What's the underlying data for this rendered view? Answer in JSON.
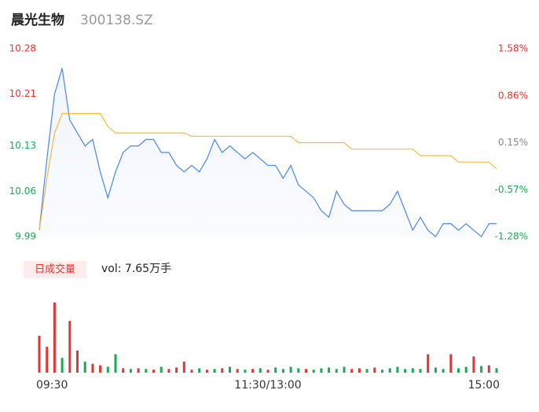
{
  "header": {
    "name": "晨光生物",
    "code": "300138.SZ"
  },
  "chart_data": [
    {
      "type": "line",
      "x": [
        0,
        4,
        8,
        12,
        16,
        20,
        24,
        28,
        32,
        36,
        40,
        44,
        48,
        52,
        56,
        60,
        64,
        68,
        72,
        76,
        80,
        84,
        88,
        92,
        96,
        100,
        104,
        108,
        112,
        116,
        120,
        124,
        128,
        132,
        136,
        140,
        144,
        148,
        152,
        156,
        160,
        164,
        168,
        172,
        176,
        180,
        184,
        188,
        192,
        196,
        200,
        204,
        208,
        212,
        216,
        220,
        224,
        228,
        232,
        236,
        240
      ],
      "xlim": [
        0,
        240
      ],
      "xticks": [
        {
          "value": 0,
          "label": "09:30"
        },
        {
          "value": 120,
          "label": "11:30/13:00"
        },
        {
          "value": 240,
          "label": "15:00"
        }
      ],
      "ylim": [
        9.99,
        10.28
      ],
      "yticks": [
        10.28,
        10.21,
        10.13,
        10.06,
        9.99
      ],
      "y2lim": [
        -1.28,
        1.58
      ],
      "y2ticks": [
        {
          "value": 1.58,
          "label": "1.58%"
        },
        {
          "value": 0.86,
          "label": "0.86%"
        },
        {
          "value": 0.15,
          "label": "0.15%"
        },
        {
          "value": -0.57,
          "label": "-0.57%"
        },
        {
          "value": -1.28,
          "label": "-1.28%"
        }
      ],
      "series": [
        {
          "color": "#4a86e8",
          "values": [
            10.0,
            10.11,
            10.21,
            10.25,
            10.17,
            10.15,
            10.13,
            10.14,
            10.09,
            10.05,
            10.09,
            10.12,
            10.13,
            10.13,
            10.14,
            10.14,
            10.12,
            10.12,
            10.1,
            10.09,
            10.1,
            10.09,
            10.11,
            10.14,
            10.12,
            10.13,
            10.12,
            10.11,
            10.12,
            10.11,
            10.1,
            10.1,
            10.08,
            10.1,
            10.07,
            10.06,
            10.05,
            10.03,
            10.02,
            10.06,
            10.04,
            10.03,
            10.03,
            10.03,
            10.03,
            10.03,
            10.04,
            10.06,
            10.03,
            10.0,
            10.02,
            10.0,
            9.99,
            10.01,
            10.01,
            10.0,
            10.01,
            10.0,
            9.99,
            10.01,
            10.01
          ]
        },
        {
          "color": "#f5b942",
          "values": [
            10.0,
            10.08,
            10.15,
            10.18,
            10.18,
            10.18,
            10.18,
            10.18,
            10.18,
            10.16,
            10.15,
            10.15,
            10.15,
            10.15,
            10.15,
            10.15,
            10.15,
            10.15,
            10.15,
            10.15,
            10.145,
            10.145,
            10.145,
            10.145,
            10.145,
            10.145,
            10.145,
            10.145,
            10.145,
            10.145,
            10.145,
            10.145,
            10.145,
            10.145,
            10.135,
            10.135,
            10.135,
            10.135,
            10.135,
            10.135,
            10.135,
            10.125,
            10.125,
            10.125,
            10.125,
            10.125,
            10.125,
            10.125,
            10.125,
            10.125,
            10.115,
            10.115,
            10.115,
            10.115,
            10.115,
            10.105,
            10.105,
            10.105,
            10.105,
            10.105,
            10.095
          ]
        }
      ]
    },
    {
      "type": "bar",
      "legend": "日成交量",
      "label": "vol: 7.65万手",
      "ylim": [
        0,
        100
      ],
      "values": [
        50,
        35,
        95,
        20,
        70,
        30,
        15,
        12,
        10,
        8,
        25,
        6,
        5,
        6,
        5,
        4,
        8,
        5,
        7,
        15,
        4,
        6,
        4,
        5,
        6,
        8,
        5,
        4,
        5,
        6,
        4,
        7,
        5,
        8,
        6,
        5,
        4,
        6,
        7,
        5,
        8,
        5,
        6,
        5,
        7,
        4,
        6,
        8,
        5,
        6,
        5,
        25,
        7,
        5,
        25,
        6,
        8,
        22,
        9,
        10,
        6
      ],
      "colors": [
        "#e83333",
        "#e83333",
        "#e83333",
        "#1aaa55",
        "#e83333",
        "#e83333",
        "#1aaa55",
        "#e83333",
        "#e83333",
        "#1aaa55",
        "#1aaa55",
        "#e83333",
        "#1aaa55",
        "#e83333",
        "#1aaa55",
        "#e83333",
        "#1aaa55",
        "#e83333",
        "#e83333",
        "#e83333",
        "#e83333",
        "#1aaa55",
        "#e83333",
        "#1aaa55",
        "#e83333",
        "#1aaa55",
        "#e83333",
        "#1aaa55",
        "#e83333",
        "#1aaa55",
        "#e83333",
        "#1aaa55",
        "#1aaa55",
        "#1aaa55",
        "#1aaa55",
        "#e83333",
        "#1aaa55",
        "#1aaa55",
        "#1aaa55",
        "#1aaa55",
        "#1aaa55",
        "#e83333",
        "#e83333",
        "#1aaa55",
        "#e83333",
        "#1aaa55",
        "#1aaa55",
        "#1aaa55",
        "#1aaa55",
        "#1aaa55",
        "#1aaa55",
        "#e83333",
        "#1aaa55",
        "#1aaa55",
        "#e83333",
        "#1aaa55",
        "#1aaa55",
        "#e83333",
        "#1aaa55",
        "#e83333",
        "#1aaa55"
      ]
    }
  ]
}
